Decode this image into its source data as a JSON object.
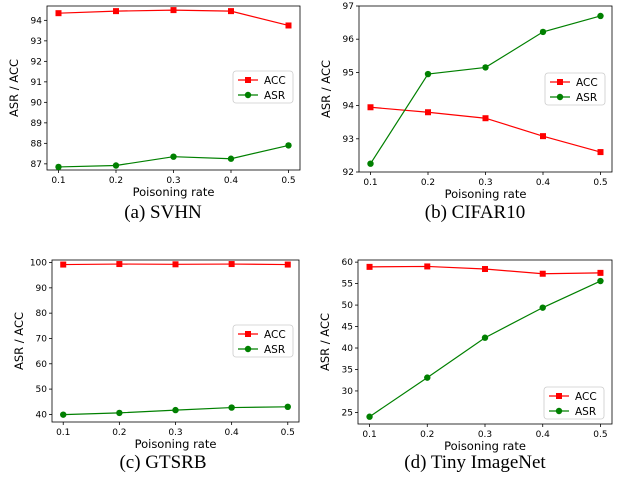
{
  "chart_data": [
    {
      "type": "line",
      "caption": "(a) SVHN",
      "xlabel": "Poisoning rate",
      "ylabel": "ASR / ACC",
      "x": [
        0.1,
        0.2,
        0.3,
        0.4,
        0.5
      ],
      "xticks": [
        "0.1",
        "0.2",
        "0.3",
        "0.4",
        "0.5"
      ],
      "ylim": [
        86.7,
        94.7
      ],
      "yticks": [
        87,
        88,
        89,
        90,
        91,
        92,
        93,
        94
      ],
      "legend": "center-right",
      "grid": false,
      "series": [
        {
          "name": "ACC",
          "color": "#ff0000",
          "marker": "square",
          "values": [
            94.35,
            94.45,
            94.5,
            94.45,
            93.75
          ]
        },
        {
          "name": "ASR",
          "color": "#008000",
          "marker": "circle",
          "values": [
            86.85,
            86.92,
            87.35,
            87.25,
            87.9
          ]
        }
      ]
    },
    {
      "type": "line",
      "caption": "(b) CIFAR10",
      "xlabel": "Poisoning rate",
      "ylabel": "ASR / ACC",
      "x": [
        0.1,
        0.2,
        0.3,
        0.4,
        0.5
      ],
      "xticks": [
        "0.1",
        "0.2",
        "0.3",
        "0.4",
        "0.5"
      ],
      "ylim": [
        92.0,
        97.0
      ],
      "yticks": [
        92,
        93,
        94,
        95,
        96,
        97
      ],
      "legend": "center-right",
      "grid": false,
      "series": [
        {
          "name": "ACC",
          "color": "#ff0000",
          "marker": "square",
          "values": [
            93.95,
            93.8,
            93.62,
            93.08,
            92.6
          ]
        },
        {
          "name": "ASR",
          "color": "#008000",
          "marker": "circle",
          "values": [
            92.25,
            94.95,
            95.15,
            96.22,
            96.7
          ]
        }
      ]
    },
    {
      "type": "line",
      "caption": "(c) GTSRB",
      "xlabel": "Poisoning rate",
      "ylabel": "ASR / ACC",
      "x": [
        0.1,
        0.2,
        0.3,
        0.4,
        0.5
      ],
      "xticks": [
        "0.1",
        "0.2",
        "0.3",
        "0.4",
        "0.5"
      ],
      "ylim": [
        37,
        101
      ],
      "yticks": [
        40,
        50,
        60,
        70,
        80,
        90,
        100
      ],
      "legend": "center-right",
      "grid": false,
      "series": [
        {
          "name": "ACC",
          "color": "#ff0000",
          "marker": "square",
          "values": [
            99.2,
            99.4,
            99.3,
            99.4,
            99.2
          ]
        },
        {
          "name": "ASR",
          "color": "#008000",
          "marker": "circle",
          "values": [
            39.9,
            40.6,
            41.7,
            42.7,
            43.0
          ]
        }
      ]
    },
    {
      "type": "line",
      "caption": "(d) Tiny ImageNet",
      "xlabel": "Poisoning rate",
      "ylabel": "ASR / ACC",
      "x": [
        0.1,
        0.2,
        0.3,
        0.4,
        0.5
      ],
      "xticks": [
        "0.1",
        "0.2",
        "0.3",
        "0.4",
        "0.5"
      ],
      "ylim": [
        22.3,
        60.5
      ],
      "yticks": [
        25,
        30,
        35,
        40,
        45,
        50,
        55,
        60
      ],
      "legend": "lower-right",
      "grid": false,
      "series": [
        {
          "name": "ACC",
          "color": "#ff0000",
          "marker": "square",
          "values": [
            58.9,
            59.0,
            58.4,
            57.3,
            57.5
          ]
        },
        {
          "name": "ASR",
          "color": "#008000",
          "marker": "circle",
          "values": [
            24.0,
            33.1,
            42.4,
            49.4,
            55.6
          ]
        }
      ]
    }
  ]
}
